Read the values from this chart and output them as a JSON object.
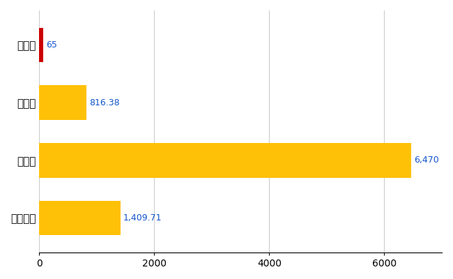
{
  "categories": [
    "新郷村",
    "県平均",
    "県最大",
    "全国平均"
  ],
  "values": [
    65,
    816.38,
    6470,
    1409.71
  ],
  "bar_colors": [
    "#CC0000",
    "#FFC107",
    "#FFC107",
    "#FFC107"
  ],
  "labels": [
    "65",
    "816.38",
    "6,470",
    "1,409.71"
  ],
  "xlim": [
    0,
    7000
  ],
  "xticks": [
    0,
    2000,
    4000,
    6000
  ],
  "grid_color": "#CCCCCC",
  "background_color": "#FFFFFF",
  "label_color": "#1155CC",
  "bar_height": 0.6,
  "figsize": [
    6.5,
    4.0
  ],
  "dpi": 100
}
